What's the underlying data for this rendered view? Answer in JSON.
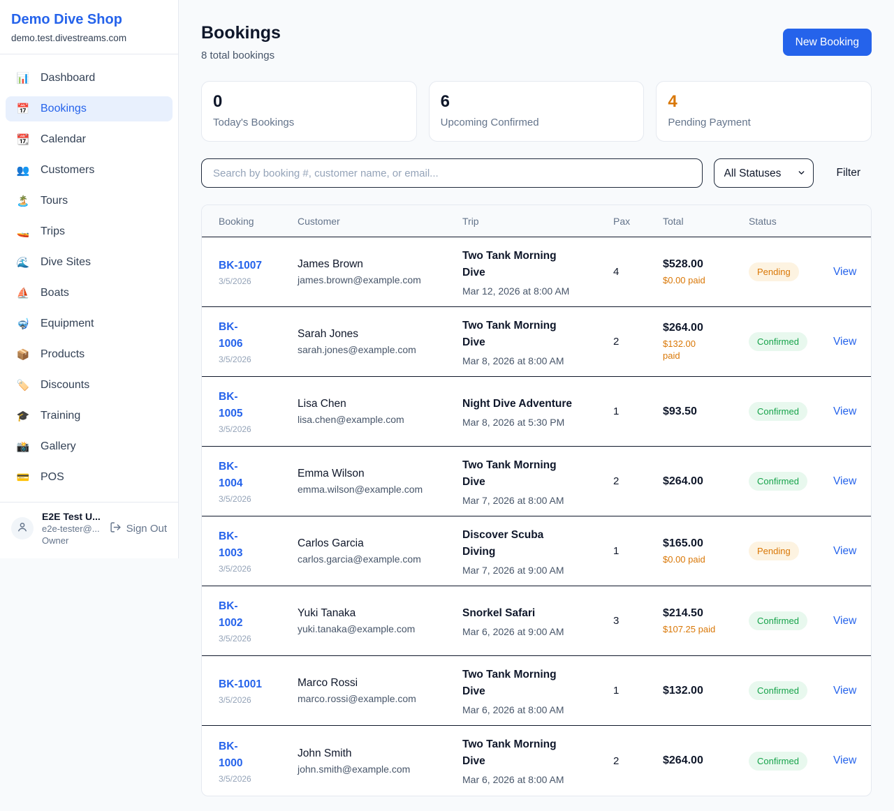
{
  "colors": {
    "accent_blue": "#2563eb",
    "orange": "#d97706",
    "green": "#16a34a",
    "pending_badge_bg": "#fdf3e1",
    "confirmed_badge_bg": "#e8f8ee",
    "page_bg": "#f8fafc",
    "dark_text": "#0f172a"
  },
  "sidebar": {
    "brand": "Demo Dive Shop",
    "domain": "demo.test.divestreams.com",
    "items": [
      {
        "id": "dashboard",
        "label": "Dashboard",
        "icon": "bar-chart-icon",
        "emoji": "📊",
        "active": false
      },
      {
        "id": "bookings",
        "label": "Bookings",
        "icon": "calendar-date-icon",
        "emoji": "📅",
        "active": true
      },
      {
        "id": "calendar",
        "label": "Calendar",
        "icon": "calendar-icon",
        "emoji": "📆",
        "active": false
      },
      {
        "id": "customers",
        "label": "Customers",
        "icon": "people-icon",
        "emoji": "👥",
        "active": false
      },
      {
        "id": "tours",
        "label": "Tours",
        "icon": "island-icon",
        "emoji": "🏝️",
        "active": false
      },
      {
        "id": "trips",
        "label": "Trips",
        "icon": "speedboat-icon",
        "emoji": "🚤",
        "active": false
      },
      {
        "id": "dive-sites",
        "label": "Dive Sites",
        "icon": "wave-icon",
        "emoji": "🌊",
        "active": false
      },
      {
        "id": "boats",
        "label": "Boats",
        "icon": "sailboat-icon",
        "emoji": "⛵",
        "active": false
      },
      {
        "id": "equipment",
        "label": "Equipment",
        "icon": "diving-mask-icon",
        "emoji": "🤿",
        "active": false
      },
      {
        "id": "products",
        "label": "Products",
        "icon": "package-icon",
        "emoji": "📦",
        "active": false
      },
      {
        "id": "discounts",
        "label": "Discounts",
        "icon": "tag-icon",
        "emoji": "🏷️",
        "active": false
      },
      {
        "id": "training",
        "label": "Training",
        "icon": "graduation-cap-icon",
        "emoji": "🎓",
        "active": false
      },
      {
        "id": "gallery",
        "label": "Gallery",
        "icon": "camera-icon",
        "emoji": "📸",
        "active": false
      },
      {
        "id": "pos",
        "label": "POS",
        "icon": "credit-card-icon",
        "emoji": "💳",
        "active": false
      }
    ],
    "user": {
      "name": "E2E Test U...",
      "email": "e2e-tester@...",
      "role": "Owner",
      "signout_label": "Sign Out"
    }
  },
  "header": {
    "title": "Bookings",
    "subtitle": "8 total bookings",
    "new_booking_label": "New Booking"
  },
  "stats": [
    {
      "value": "0",
      "label": "Today's Bookings",
      "value_color": "#0f172a"
    },
    {
      "value": "6",
      "label": "Upcoming Confirmed",
      "value_color": "#0f172a"
    },
    {
      "value": "4",
      "label": "Pending Payment",
      "value_color": "#d97706"
    }
  ],
  "filters": {
    "search_placeholder": "Search by booking #, customer name, or email...",
    "status_selected": "All Statuses",
    "filter_label": "Filter"
  },
  "table": {
    "headers": [
      "Booking",
      "Customer",
      "Trip",
      "Pax",
      "Total",
      "Status"
    ],
    "rows": [
      {
        "id": "BK-1007",
        "id_wrapped": false,
        "date": "3/5/2026",
        "customer": "James Brown",
        "email": "james.brown@example.com",
        "trip_lines": [
          "Two Tank Morning",
          "Dive"
        ],
        "trip_time": "Mar 12, 2026 at 8:00 AM",
        "pax": "4",
        "total": "$528.00",
        "paid_lines": [
          "$0.00 paid"
        ],
        "status": "Pending",
        "action": "View"
      },
      {
        "id": "BK-1006",
        "id_wrapped": true,
        "date": "3/5/2026",
        "customer": "Sarah Jones",
        "email": "sarah.jones@example.com",
        "trip_lines": [
          "Two Tank Morning",
          "Dive"
        ],
        "trip_time": "Mar 8, 2026 at 8:00 AM",
        "pax": "2",
        "total": "$264.00",
        "paid_lines": [
          "$132.00",
          "paid"
        ],
        "status": "Confirmed",
        "action": "View"
      },
      {
        "id": "BK-1005",
        "id_wrapped": true,
        "date": "3/5/2026",
        "customer": "Lisa Chen",
        "email": "lisa.chen@example.com",
        "trip_lines": [
          "Night Dive Adventure"
        ],
        "trip_time": "Mar 8, 2026 at 5:30 PM",
        "pax": "1",
        "total": "$93.50",
        "paid_lines": [],
        "status": "Confirmed",
        "action": "View"
      },
      {
        "id": "BK-1004",
        "id_wrapped": true,
        "date": "3/5/2026",
        "customer": "Emma Wilson",
        "email": "emma.wilson@example.com",
        "trip_lines": [
          "Two Tank Morning",
          "Dive"
        ],
        "trip_time": "Mar 7, 2026 at 8:00 AM",
        "pax": "2",
        "total": "$264.00",
        "paid_lines": [],
        "status": "Confirmed",
        "action": "View"
      },
      {
        "id": "BK-1003",
        "id_wrapped": true,
        "date": "3/5/2026",
        "customer": "Carlos Garcia",
        "email": "carlos.garcia@example.com",
        "trip_lines": [
          "Discover Scuba",
          "Diving"
        ],
        "trip_time": "Mar 7, 2026 at 9:00 AM",
        "pax": "1",
        "total": "$165.00",
        "paid_lines": [
          "$0.00 paid"
        ],
        "status": "Pending",
        "action": "View"
      },
      {
        "id": "BK-1002",
        "id_wrapped": true,
        "date": "3/5/2026",
        "customer": "Yuki Tanaka",
        "email": "yuki.tanaka@example.com",
        "trip_lines": [
          "Snorkel Safari"
        ],
        "trip_time": "Mar 6, 2026 at 9:00 AM",
        "pax": "3",
        "total": "$214.50",
        "paid_lines": [
          "$107.25 paid"
        ],
        "status": "Confirmed",
        "action": "View"
      },
      {
        "id": "BK-1001",
        "id_wrapped": false,
        "date": "3/5/2026",
        "customer": "Marco Rossi",
        "email": "marco.rossi@example.com",
        "trip_lines": [
          "Two Tank Morning",
          "Dive"
        ],
        "trip_time": "Mar 6, 2026 at 8:00 AM",
        "pax": "1",
        "total": "$132.00",
        "paid_lines": [],
        "status": "Confirmed",
        "action": "View"
      },
      {
        "id": "BK-1000",
        "id_wrapped": true,
        "date": "3/5/2026",
        "customer": "John Smith",
        "email": "john.smith@example.com",
        "trip_lines": [
          "Two Tank Morning",
          "Dive"
        ],
        "trip_time": "Mar 6, 2026 at 8:00 AM",
        "pax": "2",
        "total": "$264.00",
        "paid_lines": [],
        "status": "Confirmed",
        "action": "View"
      }
    ]
  }
}
